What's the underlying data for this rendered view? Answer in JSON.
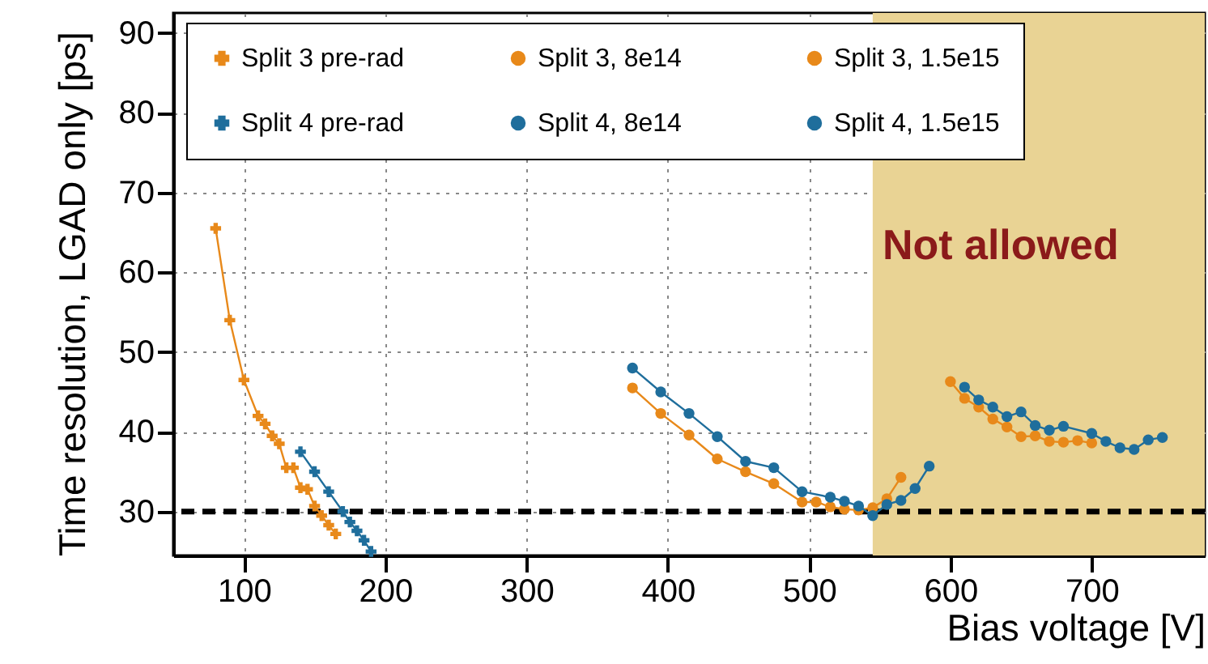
{
  "chart_data": {
    "type": "line",
    "xlabel": "Bias voltage [V]",
    "ylabel": "Time resolution, LGAD only [ps]",
    "xlim": [
      50,
      780
    ],
    "xticks": [
      100,
      200,
      300,
      400,
      500,
      600,
      700
    ],
    "ylim": [
      24.5,
      92.5
    ],
    "yticks": [
      30,
      40,
      50,
      60,
      70,
      80,
      90
    ],
    "grid": true,
    "legend": "top",
    "line_style": "solid",
    "series": [
      {
        "name": "Split 3 pre-rad",
        "color": "#e8891a",
        "marker": "cross",
        "x": [
          80,
          90,
          100,
          110,
          115,
          120,
          125,
          130,
          135,
          140,
          145,
          150,
          155,
          160,
          165
        ],
        "values": [
          65.5,
          54,
          46.5,
          42,
          41,
          39.5,
          38.5,
          35.5,
          35.5,
          33,
          32.8,
          30.7,
          29.5,
          28.3,
          27.2
        ]
      },
      {
        "name": "Split 3, 8e14",
        "color": "#e8891a",
        "marker": "circle",
        "x": [
          375,
          395,
          415,
          435,
          455,
          475,
          495,
          505,
          515,
          525,
          535,
          545,
          555,
          565
        ],
        "values": [
          45.5,
          42.3,
          39.6,
          36.6,
          35,
          33.5,
          31.2,
          31.2,
          30.6,
          30.3,
          30.2,
          30.5,
          31.6,
          34.3
        ]
      },
      {
        "name": "Split 3, 1.5e15",
        "color": "#e8891a",
        "marker": "circle",
        "x": [
          600,
          610,
          620,
          630,
          640,
          650,
          660,
          670,
          680,
          690,
          700
        ],
        "values": [
          46.3,
          44.2,
          43.1,
          41.6,
          40.6,
          39.4,
          39.5,
          38.8,
          38.7,
          38.9,
          38.6
        ]
      },
      {
        "name": "Split 4 pre-rad",
        "color": "#1f6e9c",
        "marker": "cross",
        "x": [
          140,
          150,
          160,
          170,
          175,
          180,
          185,
          190
        ],
        "values": [
          37.5,
          35,
          32.5,
          30,
          28.7,
          27.6,
          26.4,
          25
        ]
      },
      {
        "name": "Split 4, 8e14",
        "color": "#1f6e9c",
        "marker": "circle",
        "x": [
          375,
          395,
          415,
          435,
          455,
          475,
          495,
          515,
          525,
          535,
          545,
          555,
          565,
          575,
          585
        ],
        "values": [
          48,
          45,
          42.3,
          39.4,
          36.3,
          35.5,
          32.5,
          31.8,
          31.3,
          30.7,
          29.5,
          30.9,
          31.4,
          32.9,
          35.7
        ]
      },
      {
        "name": "Split 4, 1.5e15",
        "color": "#1f6e9c",
        "marker": "circle",
        "x": [
          610,
          620,
          630,
          640,
          650,
          660,
          670,
          680,
          700,
          710,
          720,
          730,
          740,
          750
        ],
        "values": [
          45.6,
          44,
          43.1,
          41.9,
          42.5,
          40.8,
          40.2,
          40.7,
          39.8,
          38.8,
          38,
          37.8,
          39,
          39.3
        ]
      }
    ],
    "ref_lines": [
      {
        "axis": "y",
        "value": 30,
        "line_style": "dashed",
        "color": "#000000"
      }
    ],
    "bands": [
      {
        "axis": "x",
        "from": 545,
        "to": 780,
        "label": "Not allowed",
        "color": "#e9d394"
      }
    ]
  }
}
